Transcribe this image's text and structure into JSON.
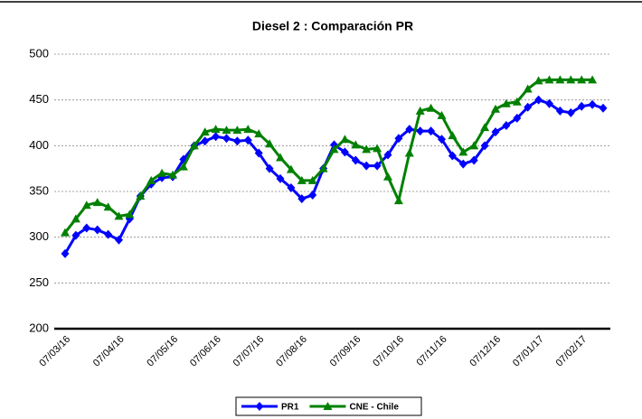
{
  "chart_data": {
    "type": "line",
    "title": "Diesel 2 : Comparación PR",
    "categories": [
      "07/03/16",
      null,
      null,
      null,
      null,
      "07/04/16",
      null,
      null,
      null,
      null,
      "07/05/16",
      null,
      null,
      null,
      "07/06/16",
      null,
      null,
      null,
      "07/07/16",
      null,
      null,
      null,
      "07/08/16",
      null,
      null,
      null,
      null,
      "07/09/16",
      null,
      null,
      null,
      "07/10/16",
      null,
      null,
      null,
      "07/11/16",
      null,
      null,
      null,
      null,
      "07/12/16",
      null,
      null,
      null,
      "07/01/17",
      null,
      null,
      null,
      "07/02/17",
      null,
      null
    ],
    "series": [
      {
        "name": "PR1",
        "color": "#0000ff",
        "marker": "diamond",
        "values": [
          282,
          302,
          310,
          308,
          303,
          297,
          320,
          345,
          358,
          365,
          366,
          385,
          400,
          405,
          410,
          408,
          405,
          406,
          392,
          375,
          364,
          354,
          342,
          346,
          375,
          401,
          393,
          384,
          378,
          378,
          390,
          408,
          418,
          416,
          416,
          407,
          389,
          380,
          384,
          400,
          415,
          422,
          430,
          442,
          450,
          446,
          438,
          436,
          443,
          445,
          441
        ]
      },
      {
        "name": "CNE - Chile",
        "color": "#008000",
        "marker": "triangle",
        "values": [
          305,
          320,
          335,
          338,
          333,
          323,
          325,
          345,
          362,
          370,
          368,
          377,
          400,
          415,
          418,
          417,
          417,
          418,
          413,
          402,
          387,
          374,
          362,
          362,
          375,
          396,
          407,
          401,
          396,
          397,
          366,
          340,
          392,
          438,
          441,
          433,
          411,
          393,
          400,
          420,
          440,
          446,
          448,
          462,
          471,
          472,
          472,
          472,
          472,
          472,
          null
        ]
      }
    ],
    "ylim": [
      200,
      500
    ],
    "yticks": [
      200,
      250,
      300,
      350,
      400,
      450,
      500
    ],
    "grid": true,
    "legend": "bottom"
  }
}
